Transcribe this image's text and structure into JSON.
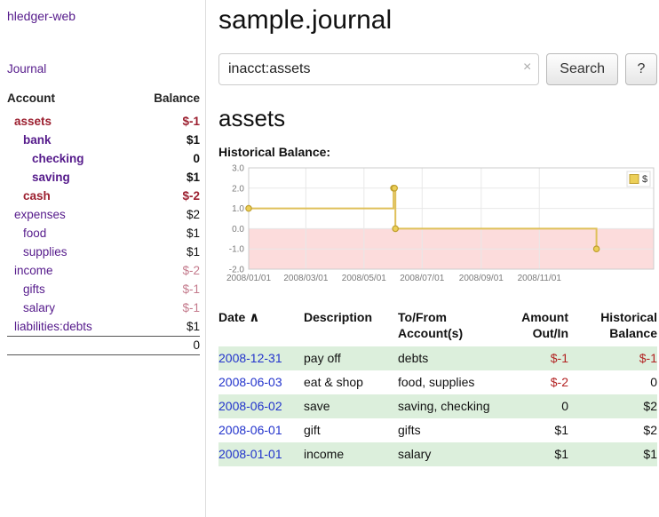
{
  "colors": {
    "purple": "#551a8b",
    "blue": "#2233cc",
    "neg_strong": "#9c2030",
    "neg_light": "#c47a8c",
    "neg_table": "#b22222",
    "row_green": "#dcefdc"
  },
  "app": {
    "title": "hledger-web",
    "nav_journal": "Journal"
  },
  "sidebar": {
    "header": {
      "account": "Account",
      "balance": "Balance"
    },
    "accounts": [
      {
        "name": "assets",
        "depth": 0,
        "balance": "$-1",
        "selected": true
      },
      {
        "name": "bank",
        "depth": 1,
        "balance": "$1",
        "selected": true
      },
      {
        "name": "checking",
        "depth": 2,
        "balance": "0",
        "selected": true
      },
      {
        "name": "saving",
        "depth": 2,
        "balance": "$1",
        "selected": true
      },
      {
        "name": "cash",
        "depth": 1,
        "balance": "$-2",
        "selected": true
      },
      {
        "name": "expenses",
        "depth": 0,
        "balance": "$2",
        "selected": false
      },
      {
        "name": "food",
        "depth": 1,
        "balance": "$1",
        "selected": false
      },
      {
        "name": "supplies",
        "depth": 1,
        "balance": "$1",
        "selected": false
      },
      {
        "name": "income",
        "depth": 0,
        "balance": "$-2",
        "selected": false
      },
      {
        "name": "gifts",
        "depth": 1,
        "balance": "$-1",
        "selected": false
      },
      {
        "name": "salary",
        "depth": 1,
        "balance": "$-1",
        "selected": false
      },
      {
        "name": "liabilities:debts",
        "depth": 0,
        "balance": "$1",
        "selected": false
      }
    ],
    "total": "0"
  },
  "main": {
    "title": "sample.journal",
    "search": {
      "value": "inacct:assets",
      "clear_icon": "×",
      "button": "Search",
      "help_button": "?"
    },
    "account_heading": "assets",
    "chart_label": "Historical Balance:"
  },
  "chart_data": {
    "type": "line",
    "title": "Historical Balance",
    "series": [
      {
        "name": "$",
        "points": [
          {
            "date": "2008-01-01",
            "value": 1
          },
          {
            "date": "2008-06-01",
            "value": 2
          },
          {
            "date": "2008-06-02",
            "value": 2
          },
          {
            "date": "2008-06-03",
            "value": 0
          },
          {
            "date": "2008-12-31",
            "value": -1
          }
        ]
      }
    ],
    "x_ticks": [
      {
        "label": "2008/01/01",
        "date": "2008-01-01"
      },
      {
        "label": "2008/03/01",
        "date": "2008-03-01"
      },
      {
        "label": "2008/05/01",
        "date": "2008-05-01"
      },
      {
        "label": "2008/07/01",
        "date": "2008-07-01"
      },
      {
        "label": "2008/09/01",
        "date": "2008-09-01"
      },
      {
        "label": "2008/11/01",
        "date": "2008-11-01"
      }
    ],
    "y_ticks": [
      "3.0",
      "2.0",
      "1.0",
      "0.0",
      "-1.0",
      "-2.0"
    ],
    "ylim": [
      -2,
      3
    ],
    "x_domain": [
      "2008-01-01",
      "2009-03-01"
    ],
    "legend_position": "top-right",
    "grid": true,
    "colors": {
      "line": "#dfc05a",
      "marker_fill": "#eccf57",
      "marker_stroke": "#bf9f2f",
      "negative_region": "#fcdcdc",
      "grid": "#e8e8e8",
      "border": "#cccccc"
    }
  },
  "table": {
    "headers": {
      "date": "Date",
      "sort_icon": "∧",
      "description": "Description",
      "accounts": "To/From Account(s)",
      "amount": "Amount Out/In",
      "balance": "Historical Balance"
    },
    "rows": [
      {
        "date": "2008-12-31",
        "description": "pay off",
        "accounts": "debts",
        "amount": "$-1",
        "balance": "$-1"
      },
      {
        "date": "2008-06-03",
        "description": "eat & shop",
        "accounts": "food, supplies",
        "amount": "$-2",
        "balance": "0"
      },
      {
        "date": "2008-06-02",
        "description": "save",
        "accounts": "saving, checking",
        "amount": "0",
        "balance": "$2"
      },
      {
        "date": "2008-06-01",
        "description": "gift",
        "accounts": "gifts",
        "amount": "$1",
        "balance": "$2"
      },
      {
        "date": "2008-01-01",
        "description": "income",
        "accounts": "salary",
        "amount": "$1",
        "balance": "$1"
      }
    ]
  }
}
